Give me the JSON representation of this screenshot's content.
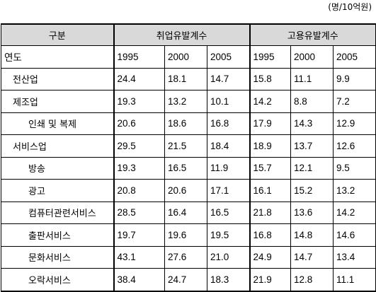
{
  "header": {
    "unit": "(명/10억원)"
  },
  "table": {
    "corner": "구분",
    "groups": [
      "취업유발계수",
      "고용유발계수"
    ],
    "year_label": "연도",
    "years": [
      [
        "1995",
        "2000",
        "2005"
      ],
      [
        "1995",
        "2000",
        "2005"
      ]
    ],
    "rows": [
      [
        "전산업",
        "24.4",
        "18.1",
        "14.7",
        "15.8",
        "11.1",
        "9.9"
      ],
      [
        "제조업",
        "19.3",
        "13.2",
        "10.1",
        "14.2",
        "8.8",
        "7.2"
      ],
      [
        "인쇄 및 복제",
        "20.6",
        "18.6",
        "16.8",
        "17.9",
        "14.3",
        "12.9"
      ],
      [
        "서비스업",
        "29.5",
        "21.5",
        "18.4",
        "18.9",
        "13.7",
        "12.6"
      ],
      [
        "방송",
        "19.3",
        "16.5",
        "11.9",
        "15.7",
        "12.1",
        "9.5"
      ],
      [
        "광고",
        "20.8",
        "20.6",
        "17.1",
        "16.1",
        "15.2",
        "13.2"
      ],
      [
        "컴퓨터관련서비스",
        "28.5",
        "16.4",
        "16.5",
        "21.8",
        "13.6",
        "14.2"
      ],
      [
        "출판서비스",
        "19.7",
        "19.6",
        "19.5",
        "16.8",
        "14.8",
        "14.6"
      ],
      [
        "문화서비스",
        "43.1",
        "27.6",
        "21.0",
        "24.9",
        "14.7",
        "13.4"
      ],
      [
        "오락서비스",
        "38.4",
        "24.7",
        "18.3",
        "21.9",
        "12.8",
        "11.1"
      ]
    ]
  }
}
